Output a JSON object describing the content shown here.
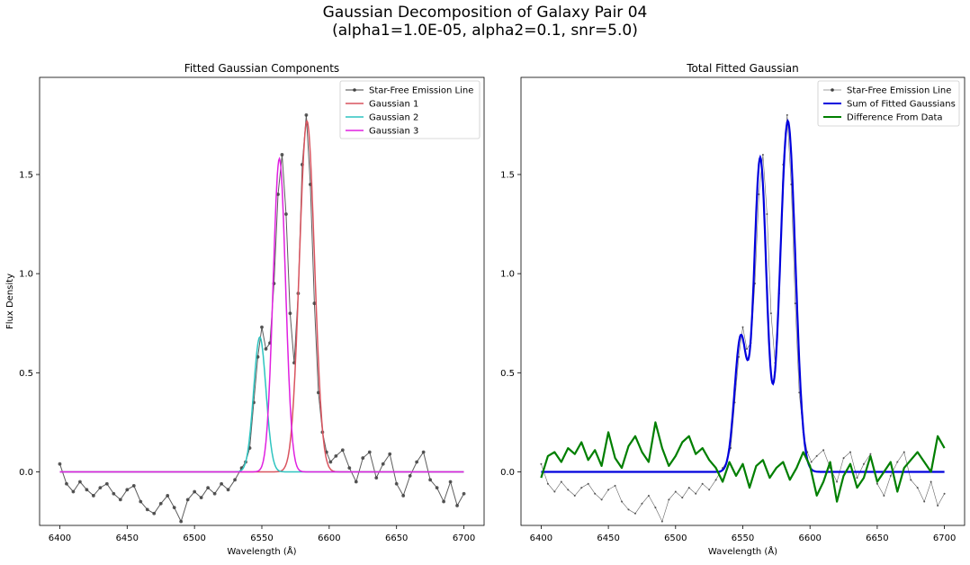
{
  "figure": {
    "title_line1": "Gaussian Decomposition of Galaxy Pair 04",
    "title_line2": "(alpha1=1.0E-05, alpha2=0.1, snr=5.0)"
  },
  "colors": {
    "data": "#404040",
    "gaussian_1": "#d9545f",
    "gaussian_2": "#2ec4c0",
    "gaussian_3": "#e020e0",
    "sum": "#0000dd",
    "difference": "#007f00"
  },
  "chart_data": [
    {
      "type": "line",
      "title": "Fitted Gaussian Components",
      "xlabel": "Wavelength (Å)",
      "ylabel": "Flux Density",
      "xlim": [
        6385,
        6715
      ],
      "ylim": [
        -0.27,
        1.99
      ],
      "xticks": [
        6400,
        6450,
        6500,
        6550,
        6600,
        6650,
        6700
      ],
      "yticks": [
        0.0,
        0.5,
        1.0,
        1.5
      ],
      "grid": false,
      "legend": "top-right",
      "series": [
        {
          "name": "Star-Free Emission Line",
          "style": "data",
          "color": "#404040",
          "x": [
            6400,
            6405,
            6410,
            6415,
            6420,
            6425,
            6430,
            6435,
            6440,
            6445,
            6450,
            6455,
            6460,
            6465,
            6470,
            6475,
            6480,
            6485,
            6490,
            6495,
            6500,
            6505,
            6510,
            6515,
            6520,
            6525,
            6530,
            6535,
            6538,
            6541,
            6544,
            6547,
            6550,
            6553,
            6556,
            6559,
            6562,
            6565,
            6568,
            6571,
            6574,
            6577,
            6580,
            6583,
            6586,
            6589,
            6592,
            6595,
            6598,
            6601,
            6605,
            6610,
            6615,
            6620,
            6625,
            6630,
            6635,
            6640,
            6645,
            6650,
            6655,
            6660,
            6665,
            6670,
            6675,
            6680,
            6685,
            6690,
            6695,
            6700
          ],
          "y": [
            0.04,
            -0.06,
            -0.1,
            -0.05,
            -0.09,
            -0.12,
            -0.08,
            -0.06,
            -0.11,
            -0.14,
            -0.09,
            -0.07,
            -0.15,
            -0.19,
            -0.21,
            -0.16,
            -0.12,
            -0.18,
            -0.25,
            -0.14,
            -0.1,
            -0.13,
            -0.08,
            -0.11,
            -0.06,
            -0.09,
            -0.04,
            0.02,
            0.05,
            0.12,
            0.35,
            0.58,
            0.73,
            0.62,
            0.65,
            0.95,
            1.4,
            1.6,
            1.3,
            0.8,
            0.55,
            0.9,
            1.55,
            1.8,
            1.45,
            0.85,
            0.4,
            0.2,
            0.1,
            0.05,
            0.08,
            0.11,
            0.02,
            -0.05,
            0.07,
            0.1,
            -0.03,
            0.04,
            0.09,
            -0.06,
            -0.12,
            -0.02,
            0.05,
            0.1,
            -0.04,
            -0.08,
            -0.15,
            -0.05,
            -0.17,
            -0.11
          ]
        },
        {
          "name": "Gaussian 1",
          "style": "gaussian",
          "color": "#d9545f",
          "amplitude": 1.77,
          "center": 6583.5,
          "sigma": 5.6
        },
        {
          "name": "Gaussian 2",
          "style": "gaussian",
          "color": "#2ec4c0",
          "amplitude": 0.68,
          "center": 6548.5,
          "sigma": 4.6
        },
        {
          "name": "Gaussian 3",
          "style": "gaussian",
          "color": "#e020e0",
          "amplitude": 1.58,
          "center": 6563.0,
          "sigma": 4.6
        }
      ]
    },
    {
      "type": "line",
      "title": "Total Fitted Gaussian",
      "xlabel": "Wavelength (Å)",
      "ylabel": "",
      "xlim": [
        6385,
        6715
      ],
      "ylim": [
        -0.27,
        1.99
      ],
      "xticks": [
        6400,
        6450,
        6500,
        6550,
        6600,
        6650,
        6700
      ],
      "yticks": [
        0.0,
        0.5,
        1.0,
        1.5
      ],
      "grid": false,
      "legend": "top-right",
      "series": [
        {
          "name": "Star-Free Emission Line",
          "style": "data-thin",
          "color": "#404040",
          "ref": "data"
        },
        {
          "name": "Sum of Fitted Gaussians",
          "style": "sum",
          "color": "#0000dd",
          "components": [
            "Gaussian 1",
            "Gaussian 2",
            "Gaussian 3"
          ]
        },
        {
          "name": "Difference From Data",
          "style": "difference",
          "color": "#007f00",
          "x": [
            6400,
            6405,
            6410,
            6415,
            6420,
            6425,
            6430,
            6435,
            6440,
            6445,
            6450,
            6455,
            6460,
            6465,
            6470,
            6475,
            6480,
            6485,
            6490,
            6495,
            6500,
            6505,
            6510,
            6515,
            6520,
            6525,
            6530,
            6535,
            6540,
            6545,
            6550,
            6555,
            6560,
            6565,
            6570,
            6575,
            6580,
            6585,
            6590,
            6595,
            6600,
            6605,
            6610,
            6615,
            6620,
            6625,
            6630,
            6635,
            6640,
            6645,
            6650,
            6655,
            6660,
            6665,
            6670,
            6675,
            6680,
            6685,
            6690,
            6695,
            6700
          ],
          "y": [
            -0.03,
            0.08,
            0.1,
            0.05,
            0.12,
            0.09,
            0.15,
            0.06,
            0.11,
            0.03,
            0.2,
            0.07,
            0.02,
            0.13,
            0.18,
            0.1,
            0.05,
            0.25,
            0.12,
            0.03,
            0.08,
            0.15,
            0.18,
            0.09,
            0.12,
            0.06,
            0.02,
            -0.05,
            0.05,
            -0.02,
            0.04,
            -0.08,
            0.03,
            0.06,
            -0.03,
            0.02,
            0.05,
            -0.04,
            0.02,
            0.1,
            0.03,
            -0.12,
            -0.05,
            0.05,
            -0.15,
            -0.02,
            0.04,
            -0.08,
            -0.03,
            0.08,
            -0.05,
            0.0,
            0.05,
            -0.1,
            0.02,
            0.06,
            0.1,
            0.05,
            0.0,
            0.18,
            0.12
          ]
        }
      ]
    }
  ]
}
